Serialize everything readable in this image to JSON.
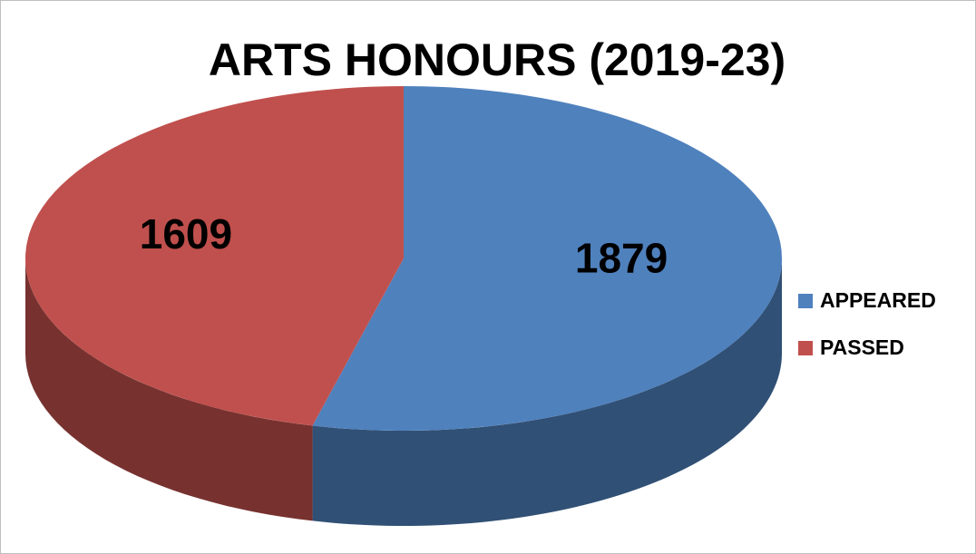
{
  "chart_data": {
    "type": "pie",
    "title": "ARTS HONOURS (2019-23)",
    "categories": [
      "APPEARED",
      "PASSED"
    ],
    "values": [
      1879,
      1609
    ],
    "colors": [
      "#4f81bd",
      "#c0504d"
    ],
    "legend": "right"
  }
}
